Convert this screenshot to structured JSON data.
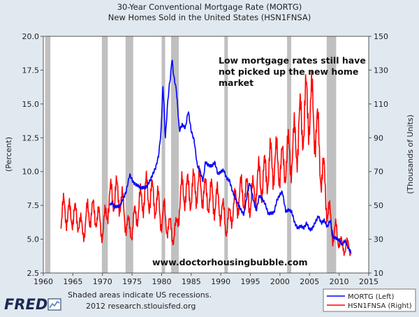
{
  "header": {
    "title": "30-Year Conventional Mortgage Rate (MORTG)",
    "subtitle": "New Homes Sold in the United States (HSN1FNSA)"
  },
  "footer": {
    "logo": "FRED",
    "note_line1": "Shaded areas indicate US recessions.",
    "note_line2": "2012 research.stlouisfed.org"
  },
  "colors": {
    "background": "#e1e9f0",
    "plot_bg": "#ffffff",
    "recession": "#c0c0c0",
    "mortg": "#0000ff",
    "hsn": "#ff0000",
    "logo": "#1a2a55"
  },
  "chart_data": {
    "type": "line",
    "title": "30-Year Conventional Mortgage Rate (MORTG)",
    "subtitle": "New Homes Sold in the United States (HSN1FNSA)",
    "xlabel": "",
    "ylabel": "(Percent)",
    "y2label": "(Thousands of Units)",
    "xlim": [
      1960,
      2015
    ],
    "ylim": [
      2.5,
      20.0
    ],
    "y2lim": [
      10,
      150
    ],
    "x_ticks": [
      "1960",
      "1965",
      "1970",
      "1975",
      "1980",
      "1985",
      "1990",
      "1995",
      "2000",
      "2005",
      "2010",
      "2015"
    ],
    "y_ticks": [
      "2.5",
      "5.0",
      "7.5",
      "10.0",
      "12.5",
      "15.0",
      "17.5",
      "20.0"
    ],
    "y2_ticks": [
      "10",
      "30",
      "50",
      "70",
      "90",
      "110",
      "130",
      "150"
    ],
    "grid": false,
    "legend_position": "bottom-right",
    "recessions": [
      [
        1960.3,
        1961.2
      ],
      [
        1969.9,
        1970.9
      ],
      [
        1973.9,
        1975.2
      ],
      [
        1980.0,
        1980.6
      ],
      [
        1981.6,
        1982.9
      ],
      [
        1990.6,
        1991.2
      ],
      [
        2001.2,
        2001.9
      ],
      [
        2007.9,
        2009.5
      ]
    ],
    "annotations": [
      {
        "text": "Low mortgage rates still have not picked up the new home market",
        "lines": [
          "Low mortgage rates still have",
          "not picked up the new home",
          "market"
        ]
      },
      {
        "text": "www.doctorhousingbubble.com"
      }
    ],
    "series": [
      {
        "name": "MORTG (Left)",
        "axis": "left",
        "x": [
          1971.3,
          1971.6,
          1972.0,
          1972.5,
          1973.0,
          1973.5,
          1974.0,
          1974.6,
          1975.2,
          1975.8,
          1976.5,
          1977.0,
          1977.5,
          1978.0,
          1978.5,
          1979.0,
          1979.5,
          1979.9,
          1980.2,
          1980.4,
          1980.6,
          1980.8,
          1981.0,
          1981.3,
          1981.5,
          1981.75,
          1982.0,
          1982.5,
          1983.0,
          1983.5,
          1984.0,
          1984.5,
          1985.0,
          1985.5,
          1986.0,
          1986.5,
          1987.0,
          1987.4,
          1987.8,
          1988.5,
          1989.0,
          1989.5,
          1990.0,
          1990.5,
          1991.0,
          1991.5,
          1992.0,
          1992.5,
          1993.0,
          1993.5,
          1993.9,
          1994.5,
          1994.9,
          1995.5,
          1996.0,
          1996.5,
          1997.0,
          1997.5,
          1998.0,
          1998.5,
          1999.0,
          1999.5,
          2000.0,
          2000.4,
          2001.0,
          2001.5,
          2002.0,
          2002.5,
          2003.0,
          2003.5,
          2004.0,
          2004.5,
          2005.0,
          2005.5,
          2006.0,
          2006.5,
          2007.0,
          2007.5,
          2008.0,
          2008.5,
          2009.0,
          2009.5,
          2010.0,
          2010.5,
          2011.0,
          2011.5,
          2012.0
        ],
        "values": [
          7.5,
          7.7,
          7.4,
          7.4,
          7.5,
          8.0,
          8.5,
          9.8,
          9.2,
          9.0,
          8.8,
          8.8,
          8.9,
          9.3,
          9.8,
          10.3,
          11.2,
          13.0,
          16.3,
          15.0,
          12.4,
          13.5,
          15.0,
          16.4,
          17.0,
          18.4,
          17.2,
          16.0,
          13.0,
          13.5,
          13.2,
          14.5,
          13.0,
          12.3,
          10.5,
          10.0,
          9.3,
          10.7,
          10.5,
          10.4,
          10.7,
          9.8,
          10.0,
          10.1,
          9.5,
          9.3,
          8.5,
          8.0,
          7.5,
          7.1,
          6.8,
          8.4,
          9.2,
          7.9,
          7.1,
          8.2,
          8.0,
          7.6,
          6.9,
          6.9,
          7.0,
          7.9,
          8.3,
          8.5,
          7.0,
          7.2,
          7.0,
          6.2,
          5.8,
          6.0,
          5.8,
          6.2,
          5.7,
          5.8,
          6.3,
          6.7,
          6.2,
          6.4,
          5.9,
          6.4,
          5.1,
          5.1,
          4.9,
          4.6,
          4.9,
          4.4,
          4.0
        ]
      },
      {
        "name": "HSN1FNSA (Right)",
        "axis": "right",
        "seasonal": true,
        "x": [
          1963.0,
          1963.5,
          1964.0,
          1964.5,
          1965.0,
          1965.5,
          1966.0,
          1966.6,
          1967.0,
          1967.5,
          1968.0,
          1968.5,
          1969.0,
          1969.5,
          1970.0,
          1970.5,
          1971.0,
          1971.5,
          1972.0,
          1972.5,
          1973.0,
          1973.5,
          1974.0,
          1974.5,
          1975.0,
          1975.5,
          1976.0,
          1976.5,
          1977.0,
          1977.5,
          1978.0,
          1978.5,
          1979.0,
          1979.5,
          1980.0,
          1980.5,
          1981.0,
          1981.5,
          1982.0,
          1982.5,
          1983.0,
          1983.5,
          1984.0,
          1984.5,
          1985.0,
          1985.5,
          1986.0,
          1986.5,
          1987.0,
          1987.5,
          1988.0,
          1988.5,
          1989.0,
          1989.5,
          1990.0,
          1990.5,
          1991.0,
          1991.5,
          1992.0,
          1992.5,
          1993.0,
          1993.5,
          1994.0,
          1994.5,
          1995.0,
          1995.5,
          1996.0,
          1996.5,
          1997.0,
          1997.5,
          1998.0,
          1998.5,
          1999.0,
          1999.5,
          2000.0,
          2000.5,
          2001.0,
          2001.5,
          2002.0,
          2002.5,
          2003.0,
          2003.5,
          2004.0,
          2004.5,
          2005.0,
          2005.5,
          2006.0,
          2006.5,
          2007.0,
          2007.5,
          2008.0,
          2008.5,
          2009.0,
          2009.5,
          2010.0,
          2010.5,
          2011.0,
          2011.5,
          2012.0
        ],
        "values": [
          42,
          48,
          45,
          44,
          45,
          43,
          42,
          34,
          38,
          45,
          46,
          45,
          45,
          40,
          35,
          42,
          52,
          55,
          57,
          56,
          55,
          48,
          40,
          36,
          36,
          43,
          48,
          52,
          56,
          58,
          56,
          55,
          52,
          50,
          42,
          45,
          38,
          36,
          32,
          36,
          52,
          58,
          60,
          57,
          58,
          60,
          62,
          60,
          60,
          55,
          55,
          55,
          52,
          52,
          48,
          44,
          38,
          42,
          48,
          50,
          55,
          57,
          58,
          56,
          53,
          56,
          62,
          65,
          65,
          68,
          72,
          75,
          76,
          75,
          75,
          72,
          78,
          79,
          82,
          86,
          90,
          98,
          102,
          108,
          110,
          105,
          98,
          88,
          70,
          65,
          48,
          42,
          32,
          35,
          30,
          25,
          26,
          25,
          26
        ]
      }
    ]
  }
}
